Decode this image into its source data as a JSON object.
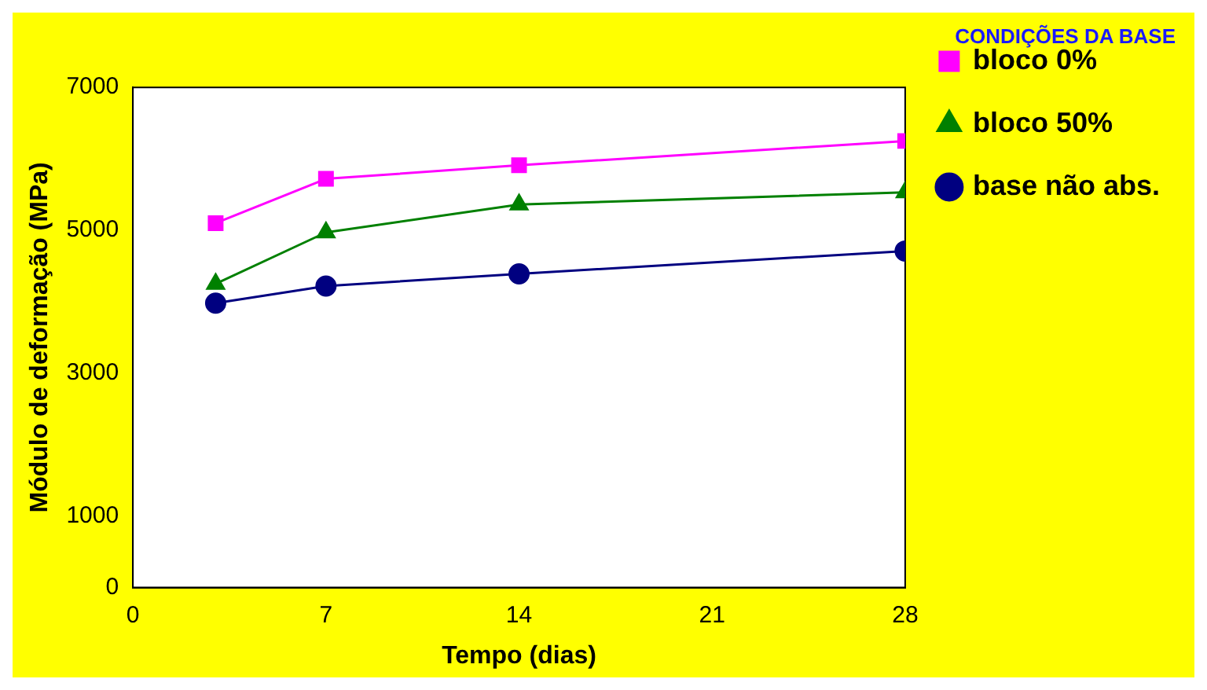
{
  "chart_data": {
    "type": "line",
    "title": "CONDIÇÕES DA BASE",
    "xlabel": "Tempo (dias)",
    "ylabel": "Módulo de deformação (MPa)",
    "x": [
      3,
      7,
      14,
      28
    ],
    "series": [
      {
        "name": "bloco 0%",
        "color": "#ff00ff",
        "marker": "square",
        "values": [
          5100,
          5720,
          5910,
          6250
        ]
      },
      {
        "name": "bloco 50%",
        "color": "#008000",
        "marker": "triangle",
        "values": [
          4250,
          4970,
          5360,
          5530
        ]
      },
      {
        "name": "base não abs.",
        "color": "#000080",
        "marker": "circle",
        "values": [
          3980,
          4220,
          4390,
          4710
        ]
      }
    ],
    "xlim": [
      0,
      28
    ],
    "xticks": [
      0,
      7,
      14,
      21,
      28
    ],
    "ylim": [
      0,
      7000
    ],
    "yticks": [
      0,
      1000,
      3000,
      5000,
      7000
    ],
    "grid": false,
    "legend": "right"
  }
}
